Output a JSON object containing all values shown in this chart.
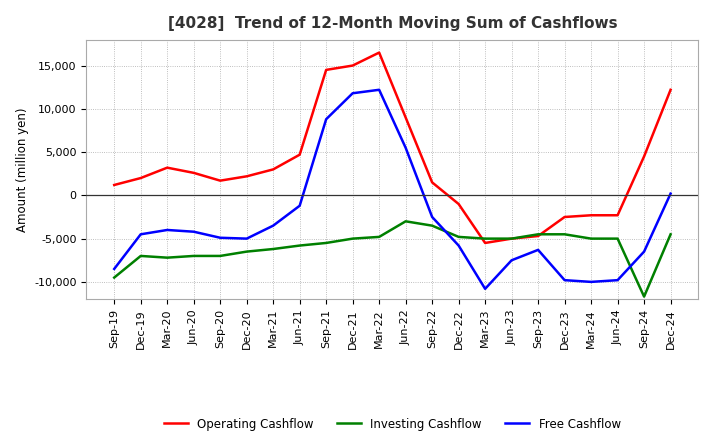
{
  "title": "[4028]  Trend of 12-Month Moving Sum of Cashflows",
  "ylabel": "Amount (million yen)",
  "x_labels": [
    "Sep-19",
    "Dec-19",
    "Mar-20",
    "Jun-20",
    "Sep-20",
    "Dec-20",
    "Mar-21",
    "Jun-21",
    "Sep-21",
    "Dec-21",
    "Mar-22",
    "Jun-22",
    "Sep-22",
    "Dec-22",
    "Mar-23",
    "Jun-23",
    "Sep-23",
    "Dec-23",
    "Mar-24",
    "Jun-24",
    "Sep-24",
    "Dec-24"
  ],
  "operating": [
    1200,
    2000,
    3200,
    2600,
    1700,
    2200,
    3000,
    4700,
    14500,
    15000,
    16500,
    9000,
    1500,
    -1000,
    -5500,
    -5000,
    -4700,
    -2500,
    -2300,
    -2300,
    4500,
    12200
  ],
  "investing": [
    -9500,
    -7000,
    -7200,
    -7000,
    -7000,
    -6500,
    -6200,
    -5800,
    -5500,
    -5000,
    -4800,
    -3000,
    -3500,
    -4800,
    -5000,
    -5000,
    -4500,
    -4500,
    -5000,
    -5000,
    -11700,
    -4500
  ],
  "free": [
    -8500,
    -4500,
    -4000,
    -4200,
    -4900,
    -5000,
    -3500,
    -1200,
    8800,
    11800,
    12200,
    5500,
    -2500,
    -5800,
    -10800,
    -7500,
    -6300,
    -9800,
    -10000,
    -9800,
    -6500,
    200
  ],
  "operating_color": "#ff0000",
  "investing_color": "#008000",
  "free_color": "#0000ff",
  "ylim": [
    -12000,
    18000
  ],
  "yticks": [
    -10000,
    -5000,
    0,
    5000,
    10000,
    15000
  ],
  "background_color": "#ffffff",
  "grid_color": "#aaaaaa",
  "line_width": 1.8,
  "title_fontsize": 11,
  "axis_fontsize": 8,
  "legend_fontsize": 8.5
}
